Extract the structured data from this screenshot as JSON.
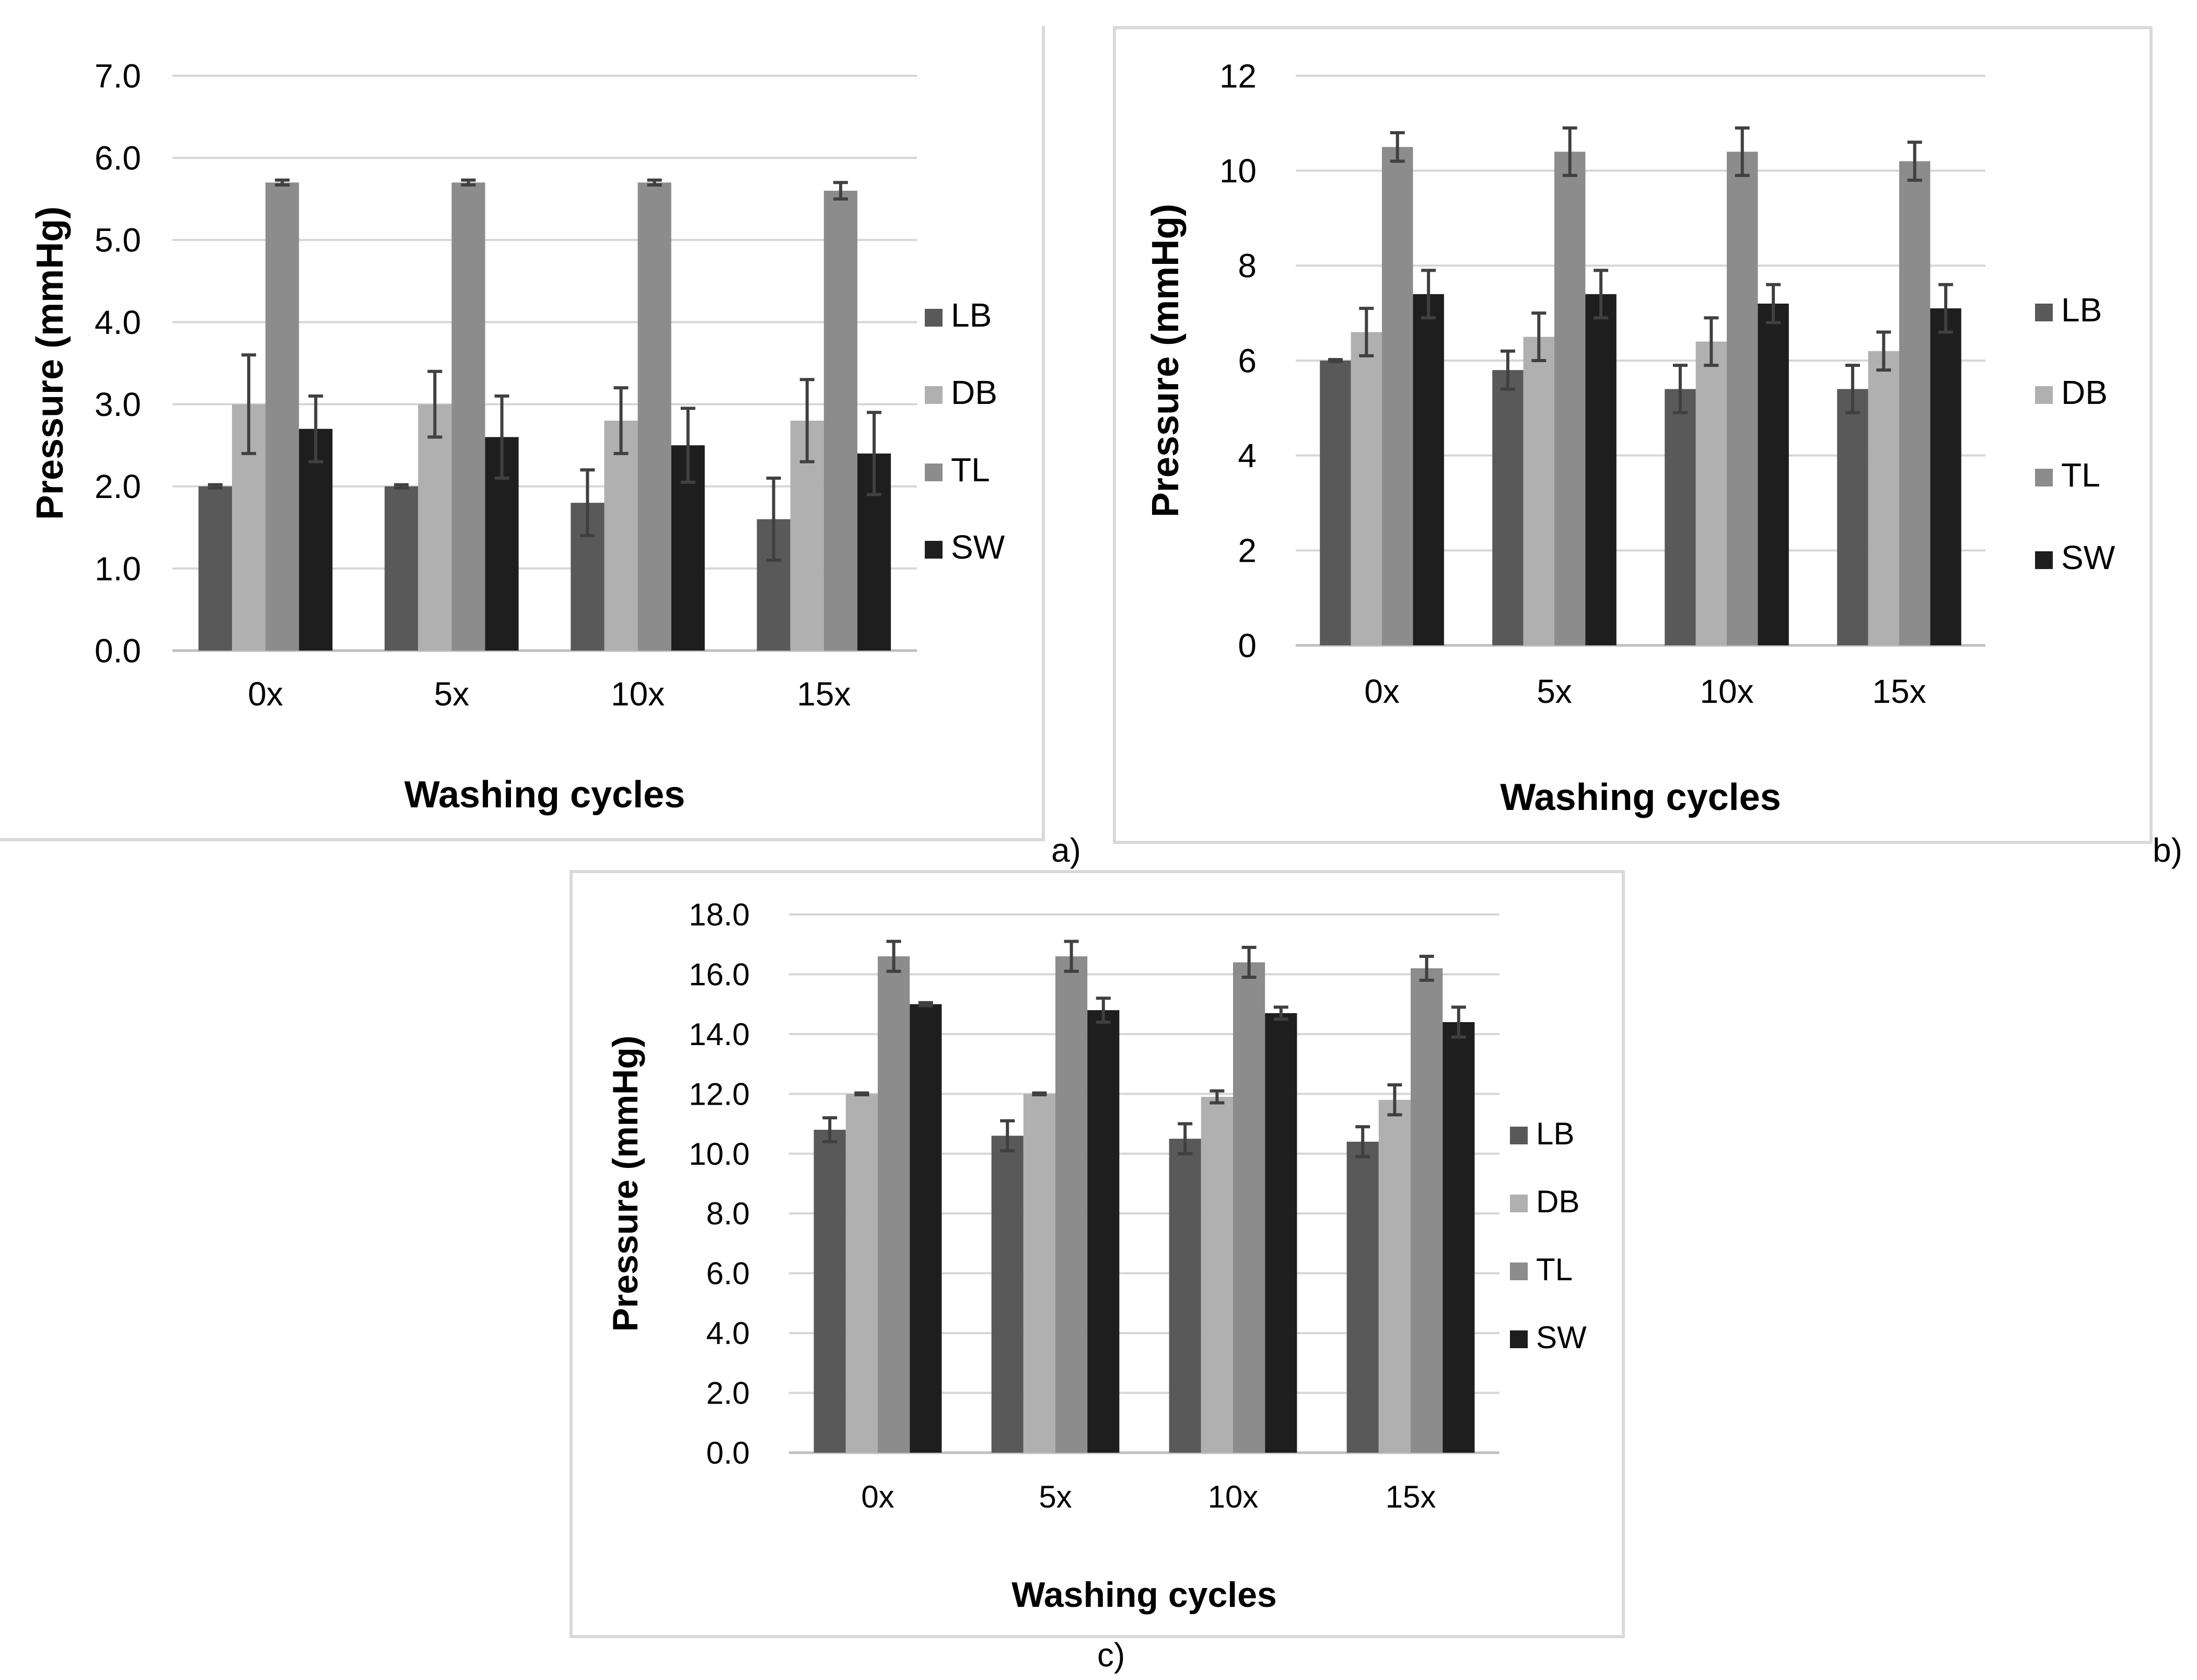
{
  "colors": {
    "LB": "#595959",
    "DB": "#b0b0b0",
    "TL": "#8c8c8c",
    "SW": "#1e1e1e",
    "grid": "#d6d6d6",
    "axis": "#bfbfbf",
    "error": "#404040"
  },
  "chart_data": [
    {
      "id": "a",
      "type": "bar",
      "panel_label": "a)",
      "title": "",
      "xlabel": "Washing cycles",
      "ylabel": "Pressure (mmHg)",
      "categories": [
        "0x",
        "5x",
        "10x",
        "15x"
      ],
      "ylim": [
        0,
        7
      ],
      "yticks": [
        "0.0",
        "1.0",
        "2.0",
        "3.0",
        "4.0",
        "5.0",
        "6.0",
        "7.0"
      ],
      "grid": true,
      "legend": "right",
      "series": [
        {
          "name": "LB",
          "values": [
            2.0,
            2.0,
            1.8,
            1.6
          ],
          "errors": [
            0.02,
            0.02,
            0.4,
            0.5
          ]
        },
        {
          "name": "DB",
          "values": [
            3.0,
            3.0,
            2.8,
            2.8
          ],
          "errors": [
            0.6,
            0.4,
            0.4,
            0.5
          ]
        },
        {
          "name": "TL",
          "values": [
            5.7,
            5.7,
            5.7,
            5.6
          ],
          "errors": [
            0.03,
            0.03,
            0.03,
            0.1
          ]
        },
        {
          "name": "SW",
          "values": [
            2.7,
            2.6,
            2.5,
            2.4
          ],
          "errors": [
            0.4,
            0.5,
            0.45,
            0.5
          ]
        }
      ]
    },
    {
      "id": "b",
      "type": "bar",
      "panel_label": "b)",
      "title": "",
      "xlabel": "Washing cycles",
      "ylabel": "Pressure (mmHg)",
      "categories": [
        "0x",
        "5x",
        "10x",
        "15x"
      ],
      "ylim": [
        0,
        12
      ],
      "yticks": [
        "0",
        "2",
        "4",
        "6",
        "8",
        "10",
        "12"
      ],
      "grid": true,
      "legend": "right",
      "series": [
        {
          "name": "LB",
          "values": [
            6.0,
            5.8,
            5.4,
            5.4
          ],
          "errors": [
            0.02,
            0.4,
            0.5,
            0.5
          ]
        },
        {
          "name": "DB",
          "values": [
            6.6,
            6.5,
            6.4,
            6.2
          ],
          "errors": [
            0.5,
            0.5,
            0.5,
            0.4
          ]
        },
        {
          "name": "TL",
          "values": [
            10.5,
            10.4,
            10.4,
            10.2
          ],
          "errors": [
            0.3,
            0.5,
            0.5,
            0.4
          ]
        },
        {
          "name": "SW",
          "values": [
            7.4,
            7.4,
            7.2,
            7.1
          ],
          "errors": [
            0.5,
            0.5,
            0.4,
            0.5
          ]
        }
      ]
    },
    {
      "id": "c",
      "type": "bar",
      "panel_label": "c)",
      "title": "",
      "xlabel": "Washing cycles",
      "ylabel": "Pressure (mmHg)",
      "categories": [
        "0x",
        "5x",
        "10x",
        "15x"
      ],
      "ylim": [
        0,
        18
      ],
      "yticks": [
        "0.0",
        "2.0",
        "4.0",
        "6.0",
        "8.0",
        "10.0",
        "12.0",
        "14.0",
        "16.0",
        "18.0"
      ],
      "grid": true,
      "legend": "right",
      "series": [
        {
          "name": "LB",
          "values": [
            10.8,
            10.6,
            10.5,
            10.4
          ],
          "errors": [
            0.4,
            0.5,
            0.5,
            0.5
          ]
        },
        {
          "name": "DB",
          "values": [
            12.0,
            12.0,
            11.9,
            11.8
          ],
          "errors": [
            0.03,
            0.03,
            0.2,
            0.5
          ]
        },
        {
          "name": "TL",
          "values": [
            16.6,
            16.6,
            16.4,
            16.2
          ],
          "errors": [
            0.5,
            0.5,
            0.5,
            0.4
          ]
        },
        {
          "name": "SW",
          "values": [
            15.0,
            14.8,
            14.7,
            14.4
          ],
          "errors": [
            0.05,
            0.4,
            0.2,
            0.5
          ]
        }
      ]
    }
  ]
}
